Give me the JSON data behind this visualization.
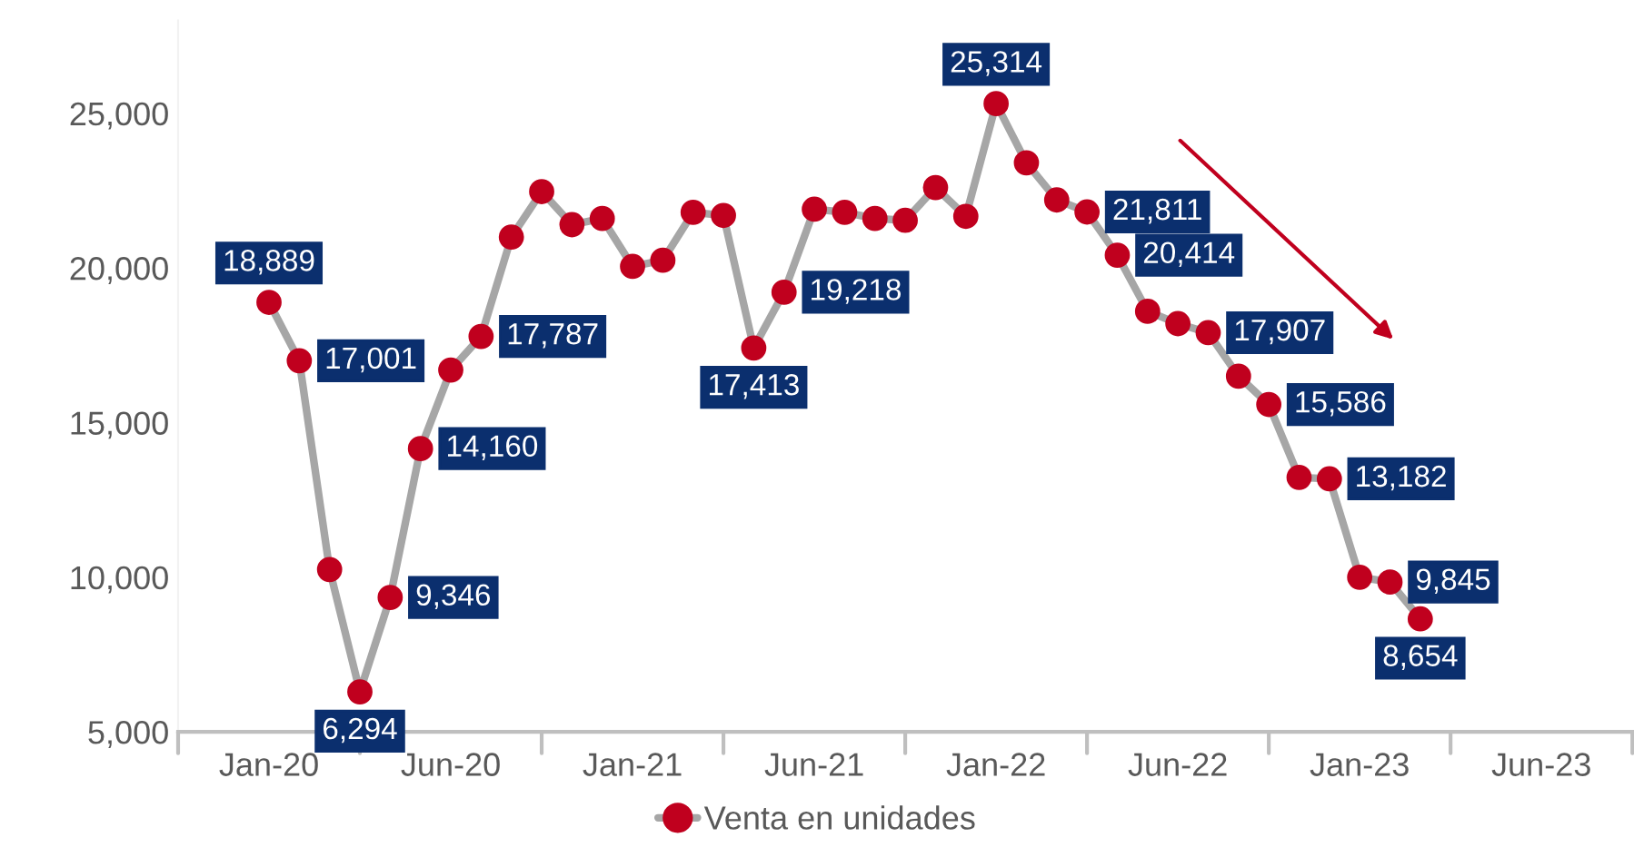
{
  "chart_data": {
    "type": "line",
    "categories": [
      null,
      null,
      null,
      "Jan-20",
      null,
      null,
      null,
      null,
      null,
      "Jun-20",
      null,
      null,
      null,
      null,
      null,
      "Jan-21",
      null,
      null,
      null,
      null,
      null,
      "Jun-21",
      null,
      null,
      null,
      null,
      null,
      "Jan-22",
      null,
      null,
      null,
      null,
      null,
      "Jun-22",
      null,
      null,
      null,
      null,
      null,
      "Jan-23",
      null,
      null,
      null,
      null,
      null,
      "Jun-23",
      null,
      null
    ],
    "series": [
      {
        "name": "Venta en unidades",
        "color": "#c0001e",
        "values": [
          null,
          null,
          null,
          18889,
          17001,
          10250,
          6294,
          9346,
          14160,
          16700,
          17787,
          21000,
          22470,
          21400,
          21600,
          20050,
          20250,
          21800,
          21700,
          17413,
          19218,
          21900,
          21800,
          21600,
          21540,
          22600,
          21670,
          25314,
          23400,
          22200,
          21811,
          20414,
          18600,
          18200,
          17907,
          16500,
          15586,
          13230,
          13182,
          10000,
          9845,
          8654,
          null,
          null,
          null,
          null,
          null,
          null
        ],
        "value_labels": [
          null,
          null,
          null,
          "18,889",
          "17,001",
          null,
          "6,294",
          "9,346",
          "14,160",
          null,
          "17,787",
          null,
          null,
          null,
          null,
          null,
          null,
          null,
          null,
          "17,413",
          "19,218",
          null,
          null,
          null,
          null,
          null,
          null,
          "25,314",
          null,
          null,
          "21,811",
          "20,414",
          null,
          null,
          "17,907",
          null,
          "15,586",
          null,
          "13,182",
          null,
          "9,845",
          "8,654",
          null,
          null,
          null,
          null,
          null,
          null
        ]
      }
    ],
    "ylim": [
      5000,
      28000
    ],
    "yticks": [
      {
        "value": 5000,
        "label": "5,000"
      },
      {
        "value": 10000,
        "label": "10,000"
      },
      {
        "value": 15000,
        "label": "15,000"
      },
      {
        "value": 20000,
        "label": "20,000"
      },
      {
        "value": 25000,
        "label": "25,000"
      }
    ],
    "marker": "circle",
    "line_style": "solid",
    "grid": false,
    "legend": "bottom"
  }
}
